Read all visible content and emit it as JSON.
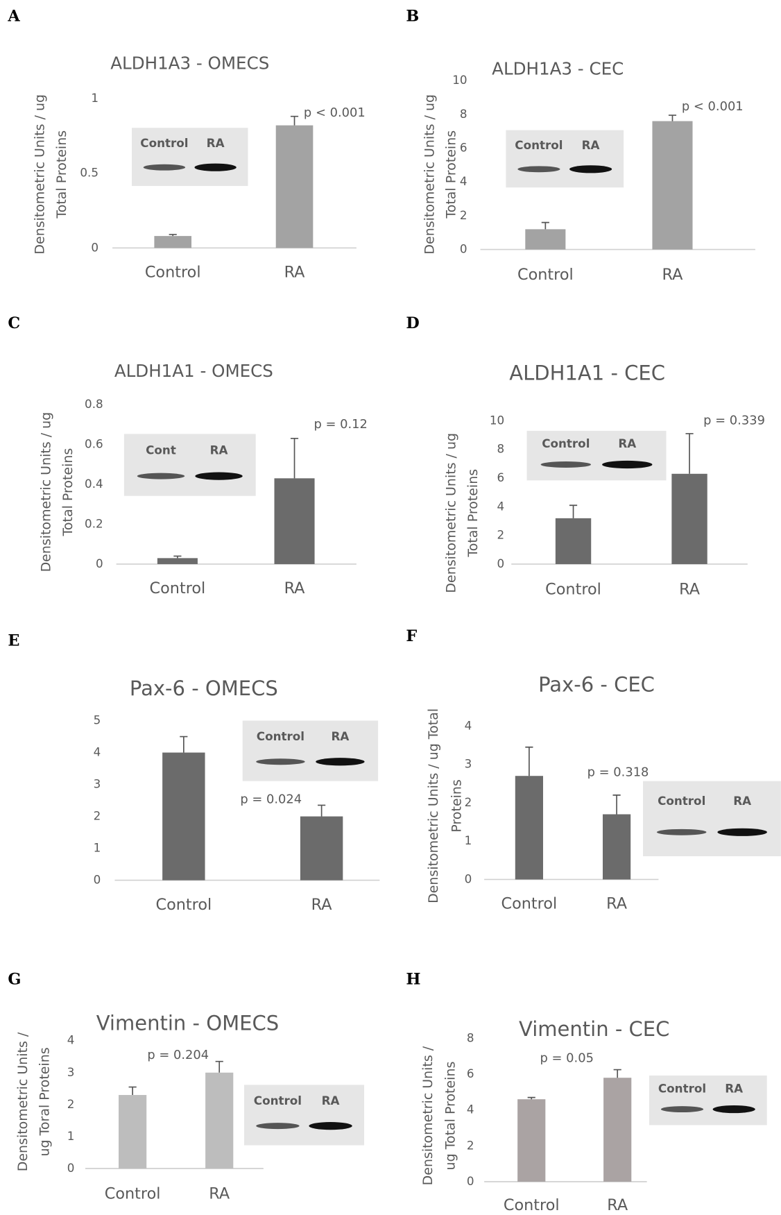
{
  "chart_data": [
    {
      "type": "bar",
      "panel": "A",
      "title": "ALDH1A3 - OMECS",
      "y_label": [
        "Densitometric Units / ug",
        "Total Proteins"
      ],
      "categories": [
        "Control",
        "RA"
      ],
      "values": [
        0.08,
        0.82
      ],
      "errors": [
        0.01,
        0.06
      ],
      "color": "#a3a3a3",
      "ylim": [
        0,
        1
      ],
      "yticks": [
        0,
        0.5,
        1
      ],
      "annotation": "p < 0.001",
      "inset_labels": [
        "Control",
        "RA"
      ]
    },
    {
      "type": "bar",
      "panel": "B",
      "title": "ALDH1A3 - CEC",
      "y_label": [
        "Densitometric Units / ug",
        "Total Proteins"
      ],
      "categories": [
        "Control",
        "RA"
      ],
      "values": [
        1.2,
        7.6
      ],
      "errors": [
        0.4,
        0.35
      ],
      "color": "#a3a3a3",
      "ylim": [
        0,
        10
      ],
      "yticks": [
        0,
        2,
        4,
        6,
        8,
        10
      ],
      "annotation": "p < 0.001",
      "inset_labels": [
        "Control",
        "RA"
      ]
    },
    {
      "type": "bar",
      "panel": "C",
      "title": "ALDH1A1  - OMECS",
      "y_label": [
        "Densitometric Units / ug",
        "Total Proteins"
      ],
      "categories": [
        "Control",
        "RA"
      ],
      "values": [
        0.03,
        0.43
      ],
      "errors": [
        0.01,
        0.2
      ],
      "color": "#6b6b6b",
      "ylim": [
        0,
        0.8
      ],
      "yticks": [
        0,
        0.2,
        0.4,
        0.6,
        0.8
      ],
      "annotation": "p = 0.12",
      "inset_labels": [
        "Cont",
        "RA"
      ]
    },
    {
      "type": "bar",
      "panel": "D",
      "title": "ALDH1A1 - CEC",
      "y_label": [
        "Densitometric Units / ug",
        "Total Proteins"
      ],
      "categories": [
        "Control",
        "RA"
      ],
      "values": [
        3.2,
        6.3
      ],
      "errors": [
        0.9,
        2.8
      ],
      "color": "#6b6b6b",
      "ylim": [
        0,
        10
      ],
      "yticks": [
        0,
        2,
        4,
        6,
        8,
        10
      ],
      "annotation": "p = 0.339",
      "inset_labels": [
        "Control",
        "RA"
      ]
    },
    {
      "type": "bar",
      "panel": "E",
      "title": "Pax-6 - OMECS",
      "categories": [
        "Control",
        "RA"
      ],
      "values": [
        4.0,
        2.0
      ],
      "errors": [
        0.5,
        0.35
      ],
      "color": "#6b6b6b",
      "ylim": [
        0,
        5
      ],
      "yticks": [
        0,
        1,
        2,
        3,
        4,
        5
      ],
      "annotation": "p = 0.024",
      "inset_labels": [
        "Control",
        "RA"
      ]
    },
    {
      "type": "bar",
      "panel": "F",
      "title": "Pax-6 - CEC",
      "y_label": [
        "Densitometric Units / ug Total",
        "Proteins"
      ],
      "categories": [
        "Control",
        "RA"
      ],
      "values": [
        2.7,
        1.7
      ],
      "errors": [
        0.75,
        0.5
      ],
      "color": "#6b6b6b",
      "ylim": [
        0,
        4
      ],
      "yticks": [
        0,
        1,
        2,
        3,
        4
      ],
      "annotation": "p = 0.318",
      "inset_labels": [
        "Control",
        "RA"
      ]
    },
    {
      "type": "bar",
      "panel": "G",
      "title": "Vimentin - OMECS",
      "y_label": [
        "Densitometric Units /",
        "ug Toral Proteins"
      ],
      "categories": [
        "Control",
        "RA"
      ],
      "values": [
        2.3,
        3.0
      ],
      "errors": [
        0.25,
        0.35
      ],
      "color": "#bdbdbd",
      "ylim": [
        0,
        4
      ],
      "yticks": [
        0,
        1,
        2,
        3,
        4
      ],
      "annotation": "p = 0.204",
      "inset_labels": [
        "Control",
        "RA"
      ]
    },
    {
      "type": "bar",
      "panel": "H",
      "title": "Vimentin  - CEC",
      "y_label": [
        "Densitometric Units /",
        "ug Total Proteins"
      ],
      "categories": [
        "Control",
        "RA"
      ],
      "values": [
        4.6,
        5.8
      ],
      "errors": [
        0.1,
        0.45
      ],
      "color": "#aaa3a3",
      "ylim": [
        0,
        8
      ],
      "yticks": [
        0,
        2,
        4,
        6,
        8
      ],
      "annotation": "p = 0.05",
      "inset_labels": [
        "Control",
        "RA"
      ]
    }
  ]
}
